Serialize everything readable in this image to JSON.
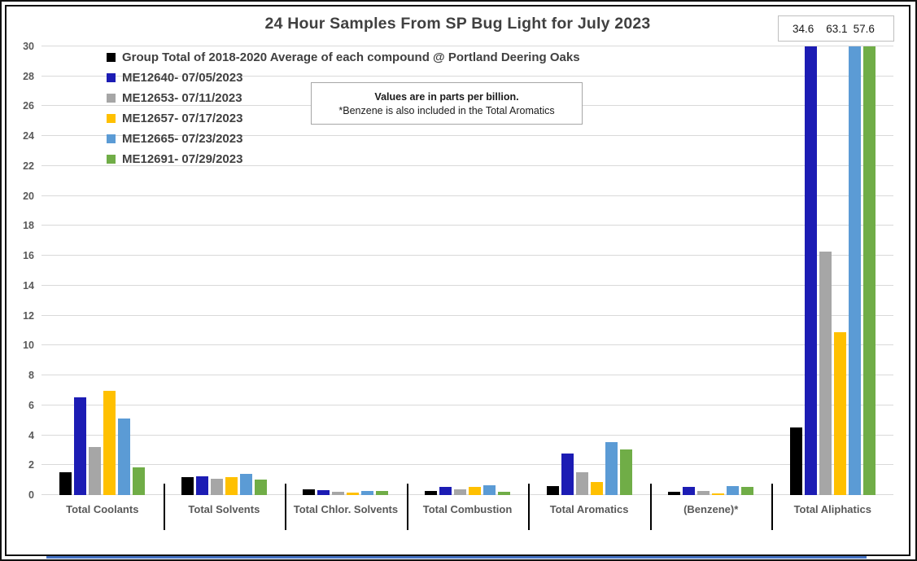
{
  "annotation": {
    "line1": "Values are in parts per billion.",
    "line2": "*Benzene is also included in the Total Aromatics"
  },
  "chart_data": {
    "type": "bar",
    "title": "24 Hour Samples From SP Bug Light for July 2023",
    "xlabel": "",
    "ylabel": "",
    "units": "parts per billion",
    "ylim": [
      0,
      30
    ],
    "ytick_step": 2,
    "grid": true,
    "legend_position": "top-left",
    "categories": [
      "Total Coolants",
      "Total Solvents",
      "Total Chlor. Solvents",
      "Total Combustion",
      "Total Aromatics",
      "(Benzene)*",
      "Total Aliphatics"
    ],
    "series": [
      {
        "name": "Group Total of 2018-2020 Average of each compound @ Portland Deering Oaks",
        "color": "#000000",
        "values": [
          1.55,
          1.2,
          0.38,
          0.25,
          0.6,
          0.2,
          4.5
        ]
      },
      {
        "name": "ME12640- 07/05/2023",
        "color": "#1c1cb4",
        "values": [
          6.55,
          1.25,
          0.33,
          0.57,
          2.8,
          0.55,
          34.6
        ]
      },
      {
        "name": "ME12653- 07/11/2023",
        "color": "#a6a6a6",
        "values": [
          3.2,
          1.1,
          0.22,
          0.38,
          1.55,
          0.27,
          16.3
        ]
      },
      {
        "name": "ME12657- 07/17/2023",
        "color": "#ffc000",
        "values": [
          6.95,
          1.2,
          0.14,
          0.55,
          0.85,
          0.13,
          10.9
        ]
      },
      {
        "name": "ME12665- 07/23/2023",
        "color": "#5b9bd5",
        "values": [
          5.1,
          1.4,
          0.26,
          0.65,
          3.55,
          0.6,
          63.1
        ]
      },
      {
        "name": "ME12691- 07/29/2023",
        "color": "#70ad47",
        "values": [
          1.85,
          1.05,
          0.26,
          0.23,
          3.05,
          0.55,
          57.6
        ]
      }
    ],
    "overflow_labels": [
      "34.6",
      "63.1",
      "57.6"
    ],
    "overflow_note": "values above axis max shown as labels in box at top right of Total Aliphatics group"
  },
  "colors": {
    "gridline": "#d9d9d9",
    "axis_text": "#595959",
    "title_text": "#404040",
    "frame_border": "#111111",
    "bottom_line": "#4472c4"
  }
}
